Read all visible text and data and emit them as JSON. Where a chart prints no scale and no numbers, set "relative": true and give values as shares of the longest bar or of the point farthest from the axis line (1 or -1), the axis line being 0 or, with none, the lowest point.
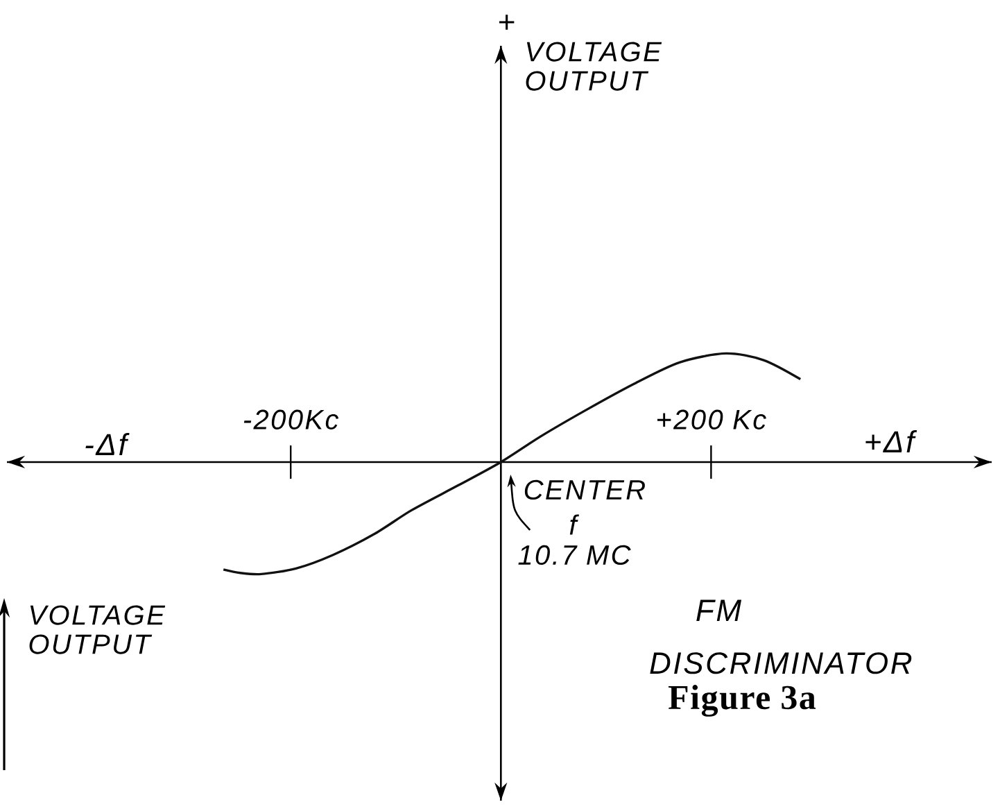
{
  "chart_data": {
    "type": "line",
    "title": "FM DISCRIMINATOR",
    "relative": true,
    "x": [
      -264,
      -248,
      -228,
      -195,
      -160,
      -120,
      -85,
      -41,
      0,
      38,
      82,
      127,
      170,
      214,
      250,
      285
    ],
    "series": [
      {
        "color": "#111111",
        "values": [
          -0.96,
          -0.99,
          -1,
          -0.95,
          -0.83,
          -0.64,
          -0.43,
          -0.21,
          0,
          0.23,
          0.47,
          0.7,
          0.89,
          0.97,
          0.91,
          0.74
        ]
      }
    ],
    "xlim": [
      -470,
      467
    ],
    "xticks": [
      {
        "value": -200,
        "label": "-200Kc"
      },
      {
        "value": 200,
        "label": "+200 Kc"
      }
    ],
    "marker": "none",
    "line_style": "solid",
    "annotations": [
      {
        "text": "CENTER",
        "x": 0,
        "y": 0
      },
      "f",
      "10.7 MC",
      "-Δf",
      "+Δf",
      "+",
      "VOLTAGE OUTPUT",
      "Figure 3a",
      "VOLTAGE OUTPUT"
    ]
  }
}
